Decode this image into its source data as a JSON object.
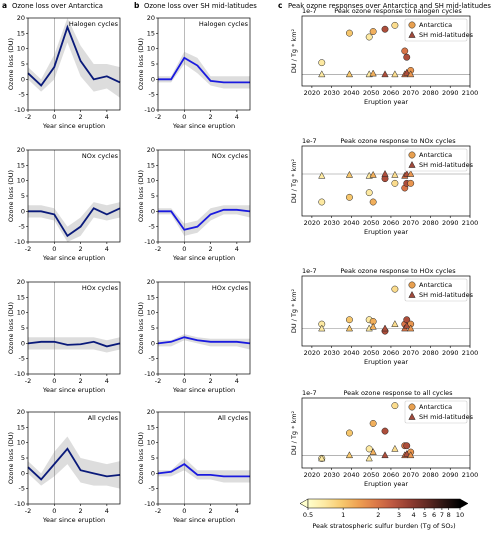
{
  "headers": [
    {
      "letter": "a",
      "title": "Ozone loss over Antarctica"
    },
    {
      "letter": "b",
      "title": "Ozone loss over SH mid-latitudes"
    },
    {
      "letter": "c",
      "title": "Peak ozone responses over Antarctica and SH mid-latitudes"
    }
  ],
  "chart_data": [
    {
      "type": "line",
      "title": "Halogen cycles",
      "xlabel": "Year since eruption",
      "ylabel": "Ozone loss (DU)",
      "x": [
        -2,
        -1,
        0,
        1,
        2,
        3,
        4,
        5
      ],
      "xlim": [
        -2,
        5
      ],
      "xticks": [
        -2,
        0,
        2,
        4
      ],
      "ylim": [
        -10,
        20
      ],
      "yticks": [
        -10,
        -5,
        0,
        5,
        10,
        15,
        20
      ],
      "series": [
        {
          "color": "#0a1a7a",
          "values": [
            2,
            -2,
            4,
            17,
            6,
            0,
            1,
            -1
          ],
          "band_lower": [
            0,
            -4,
            0,
            12,
            1,
            -4,
            -3,
            -6
          ],
          "band_upper": [
            4,
            0,
            8,
            20,
            11,
            5,
            5,
            4
          ]
        }
      ]
    },
    {
      "type": "line",
      "title": "Halogen cycles",
      "xlabel": "Year since eruption",
      "ylabel": "Ozone loss (DU)",
      "x": [
        -2,
        -1,
        0,
        1,
        2,
        3,
        4,
        5
      ],
      "xlim": [
        -2,
        5
      ],
      "xticks": [
        -2,
        0,
        2,
        4
      ],
      "ylim": [
        -10,
        20
      ],
      "yticks": [
        -10,
        -5,
        0,
        5,
        10,
        15,
        20
      ],
      "series": [
        {
          "color": "#1a1adf",
          "values": [
            0,
            0,
            7,
            4.5,
            -0.5,
            -1,
            -1,
            -1
          ],
          "band_lower": [
            -1,
            -1,
            5,
            2,
            -2,
            -3,
            -3,
            -3
          ],
          "band_upper": [
            1,
            1,
            9,
            7,
            1,
            1,
            1,
            1
          ]
        }
      ]
    },
    {
      "type": "scatter",
      "title": "Peak ozone response to halogen cycles",
      "xlabel": "Eruption year",
      "ylabel": "DU / Tg * km²",
      "offset_label": "1e-7",
      "xlim": [
        2015,
        2100
      ],
      "xticks": [
        2020,
        2030,
        2040,
        2050,
        2060,
        2070,
        2080,
        2090,
        2100
      ],
      "ylim": [
        -1.5,
        7.5
      ],
      "legend": "upper right",
      "burden": [
        0.7,
        1.0,
        0.7,
        1.2,
        3,
        0.8,
        2,
        3,
        1.5
      ],
      "series": [
        {
          "name": "Antarctica",
          "marker": "circle",
          "color": "#e8a050",
          "x": [
            2025,
            2039,
            2049,
            2051,
            2057,
            2062,
            2067,
            2068,
            2070
          ],
          "values": [
            1.5,
            5.3,
            4.8,
            5.5,
            5.8,
            6.3,
            3.0,
            2.2,
            0.5
          ]
        },
        {
          "name": "SH mid-latitudes",
          "marker": "triangle",
          "color": "#a04a3c",
          "x": [
            2025,
            2039,
            2049,
            2051,
            2057,
            2062,
            2067,
            2068,
            2070
          ],
          "values": [
            0,
            0,
            0,
            0.1,
            0,
            0,
            0,
            0.2,
            0
          ]
        }
      ]
    },
    {
      "type": "line",
      "title": "NOx cycles",
      "xlabel": "Year since eruption",
      "ylabel": "Ozone loss (DU)",
      "x": [
        -2,
        -1,
        0,
        1,
        2,
        3,
        4,
        5
      ],
      "xlim": [
        -2,
        5
      ],
      "xticks": [
        -2,
        0,
        2,
        4
      ],
      "ylim": [
        -10,
        20
      ],
      "yticks": [
        -10,
        -5,
        0,
        5,
        10,
        15,
        20
      ],
      "series": [
        {
          "color": "#0a1a7a",
          "values": [
            0,
            0,
            -1,
            -8,
            -5,
            1,
            -1,
            1
          ],
          "band_lower": [
            -2,
            -2,
            -3,
            -10,
            -8,
            -2,
            -3,
            -2
          ],
          "band_upper": [
            2,
            2,
            1,
            -5,
            -2,
            3,
            2,
            3
          ]
        }
      ]
    },
    {
      "type": "line",
      "title": "NOx cycles",
      "xlabel": "Year since eruption",
      "ylabel": "Ozone loss (DU)",
      "x": [
        -2,
        -1,
        0,
        1,
        2,
        3,
        4,
        5
      ],
      "xlim": [
        -2,
        5
      ],
      "xticks": [
        -2,
        0,
        2,
        4
      ],
      "ylim": [
        -10,
        20
      ],
      "yticks": [
        -10,
        -5,
        0,
        5,
        10,
        15,
        20
      ],
      "series": [
        {
          "color": "#1a1adf",
          "values": [
            0,
            0,
            -6,
            -5,
            -1,
            0.5,
            0.5,
            0
          ],
          "band_lower": [
            -1,
            -1,
            -8,
            -7,
            -3,
            -1,
            -1,
            -2
          ],
          "band_upper": [
            1,
            1,
            -4,
            -3,
            1,
            2,
            2,
            2
          ]
        }
      ]
    },
    {
      "type": "scatter",
      "title": "Peak ozone response to NOx cycles",
      "xlabel": "Eruption year",
      "ylabel": "DU / Tg * km²",
      "offset_label": "1e-7",
      "xlim": [
        2015,
        2100
      ],
      "xticks": [
        2020,
        2030,
        2040,
        2050,
        2060,
        2070,
        2080,
        2090,
        2100
      ],
      "ylim": [
        -4.5,
        3
      ],
      "legend": "upper right",
      "burden": [
        0.7,
        1.0,
        0.7,
        1.2,
        3,
        0.8,
        2,
        3,
        1.5
      ],
      "series": [
        {
          "name": "Antarctica",
          "marker": "circle",
          "color": "#e8a050",
          "x": [
            2025,
            2039,
            2049,
            2051,
            2057,
            2062,
            2067,
            2068,
            2070
          ],
          "values": [
            -3,
            -2.5,
            -2,
            -3,
            -0.5,
            -1,
            -1.5,
            -1,
            -1
          ]
        },
        {
          "name": "SH mid-latitudes",
          "marker": "triangle",
          "color": "#a04a3c",
          "x": [
            2025,
            2039,
            2049,
            2051,
            2057,
            2062,
            2067,
            2068,
            2070
          ],
          "values": [
            -0.2,
            -0.1,
            -0.2,
            -0.1,
            0,
            -0.1,
            -0.2,
            0,
            0
          ]
        }
      ]
    },
    {
      "type": "line",
      "title": "HOx cycles",
      "xlabel": "Year since eruption",
      "ylabel": "Ozone loss (DU)",
      "x": [
        -2,
        -1,
        0,
        1,
        2,
        3,
        4,
        5
      ],
      "xlim": [
        -2,
        5
      ],
      "xticks": [
        -2,
        0,
        2,
        4
      ],
      "ylim": [
        -10,
        20
      ],
      "yticks": [
        -10,
        -5,
        0,
        5,
        10,
        15,
        20
      ],
      "series": [
        {
          "color": "#0a1a7a",
          "values": [
            0,
            0.5,
            0.5,
            -0.5,
            -0.3,
            0.5,
            -1,
            0
          ],
          "band_lower": [
            -2,
            -2,
            -2,
            -2,
            -2,
            -2,
            -3,
            -2
          ],
          "band_upper": [
            2,
            2,
            2,
            2,
            2,
            2,
            1,
            2
          ]
        }
      ]
    },
    {
      "type": "line",
      "title": "HOx cycles",
      "xlabel": "Year since eruption",
      "ylabel": "Ozone loss (DU)",
      "x": [
        -2,
        -1,
        0,
        1,
        2,
        3,
        4,
        5
      ],
      "xlim": [
        -2,
        5
      ],
      "xticks": [
        -2,
        0,
        2,
        4
      ],
      "ylim": [
        -10,
        20
      ],
      "yticks": [
        -10,
        -5,
        0,
        5,
        10,
        15,
        20
      ],
      "series": [
        {
          "color": "#1a1adf",
          "values": [
            0,
            0.5,
            2,
            1,
            0.5,
            0.5,
            0.5,
            0
          ],
          "band_lower": [
            -1,
            -1,
            1,
            0,
            -1,
            -1,
            -1,
            -2
          ],
          "band_upper": [
            1,
            1,
            3,
            2,
            1.5,
            1.5,
            1.5,
            1.5
          ]
        }
      ]
    },
    {
      "type": "scatter",
      "title": "Peak ozone response to HOx cycles",
      "xlabel": "Eruption year",
      "ylabel": "DU / Tg * km²",
      "offset_label": "1e-7",
      "xlim": [
        2015,
        2100
      ],
      "xticks": [
        2020,
        2030,
        2040,
        2050,
        2060,
        2070,
        2080,
        2090,
        2100
      ],
      "ylim": [
        -2,
        6
      ],
      "legend": "upper right",
      "burden": [
        0.7,
        1.0,
        0.7,
        1.2,
        3,
        0.8,
        2,
        3,
        1.5
      ],
      "series": [
        {
          "name": "Antarctica",
          "marker": "circle",
          "color": "#e8a050",
          "x": [
            2025,
            2039,
            2049,
            2051,
            2057,
            2062,
            2067,
            2068,
            2070
          ],
          "values": [
            0.5,
            1,
            1,
            0.8,
            -0.3,
            4.5,
            0.5,
            1,
            0.5
          ]
        },
        {
          "name": "SH mid-latitudes",
          "marker": "triangle",
          "color": "#a04a3c",
          "x": [
            2025,
            2039,
            2049,
            2051,
            2057,
            2062,
            2067,
            2068,
            2070
          ],
          "values": [
            0,
            0,
            0,
            0.2,
            0,
            0.5,
            0,
            0.3,
            0
          ]
        }
      ]
    },
    {
      "type": "line",
      "title": "All cycles",
      "xlabel": "Year since eruption",
      "ylabel": "Ozone loss (DU)",
      "x": [
        -2,
        -1,
        0,
        1,
        2,
        3,
        4,
        5
      ],
      "xlim": [
        -2,
        5
      ],
      "xticks": [
        -2,
        0,
        2,
        4
      ],
      "ylim": [
        -10,
        20
      ],
      "yticks": [
        -10,
        -5,
        0,
        5,
        10,
        15,
        20
      ],
      "series": [
        {
          "color": "#0a1a7a",
          "values": [
            2,
            -2,
            3,
            8,
            1,
            0,
            -1,
            -0.5
          ],
          "band_lower": [
            0,
            -4,
            -1,
            3,
            -3,
            -4,
            -4,
            -5
          ],
          "band_upper": [
            4,
            0,
            7,
            12,
            5,
            4,
            3,
            4
          ]
        }
      ]
    },
    {
      "type": "line",
      "title": "All cycles",
      "xlabel": "Year since eruption",
      "ylabel": "Ozone loss (DU)",
      "x": [
        -2,
        -1,
        0,
        1,
        2,
        3,
        4,
        5
      ],
      "xlim": [
        -2,
        5
      ],
      "xticks": [
        -2,
        0,
        2,
        4
      ],
      "ylim": [
        -10,
        20
      ],
      "yticks": [
        -10,
        -5,
        0,
        5,
        10,
        15,
        20
      ],
      "series": [
        {
          "color": "#1a1adf",
          "values": [
            0,
            0.5,
            3,
            -0.5,
            -0.5,
            -1,
            -1,
            -1
          ],
          "band_lower": [
            -1,
            -1,
            1,
            -2,
            -2,
            -3,
            -3,
            -3
          ],
          "band_upper": [
            1,
            1,
            5,
            1,
            1,
            1,
            1,
            1
          ]
        }
      ]
    },
    {
      "type": "scatter",
      "title": "Peak ozone response to all cycles",
      "xlabel": "Eruption year",
      "ylabel": "DU / Tg * km²",
      "offset_label": "1e-7",
      "xlim": [
        2015,
        2100
      ],
      "xticks": [
        2020,
        2030,
        2040,
        2050,
        2060,
        2070,
        2080,
        2090,
        2100
      ],
      "ylim": [
        -2,
        9
      ],
      "legend": "upper right",
      "burden": [
        0.7,
        1.0,
        0.7,
        1.2,
        3,
        0.8,
        2,
        3,
        1.5
      ],
      "series": [
        {
          "name": "Antarctica",
          "marker": "circle",
          "color": "#e8a050",
          "x": [
            2025,
            2039,
            2049,
            2051,
            2057,
            2062,
            2067,
            2068,
            2070
          ],
          "values": [
            -0.5,
            3.5,
            1,
            5,
            3.8,
            7.8,
            1.5,
            1.5,
            0.5
          ]
        },
        {
          "name": "SH mid-latitudes",
          "marker": "triangle",
          "color": "#a04a3c",
          "x": [
            2025,
            2039,
            2049,
            2051,
            2057,
            2062,
            2067,
            2068,
            2070
          ],
          "values": [
            -0.5,
            0,
            -0.5,
            0.5,
            0,
            1,
            0,
            0.2,
            0
          ]
        }
      ]
    },
    {
      "type": "colorbar",
      "label": "Peak stratospheric sulfur burden (Tg of SO₂)",
      "log": true,
      "lim": [
        0.5,
        10
      ],
      "ticks": [
        0.5,
        1,
        2,
        3,
        4,
        5,
        6,
        7,
        8,
        10
      ],
      "colors": [
        "#ffffcc",
        "#fde9a2",
        "#f7c96e",
        "#eea052",
        "#dc7a48",
        "#bd5841",
        "#923d31",
        "#632a23",
        "#2e1613",
        "#000000"
      ]
    }
  ]
}
